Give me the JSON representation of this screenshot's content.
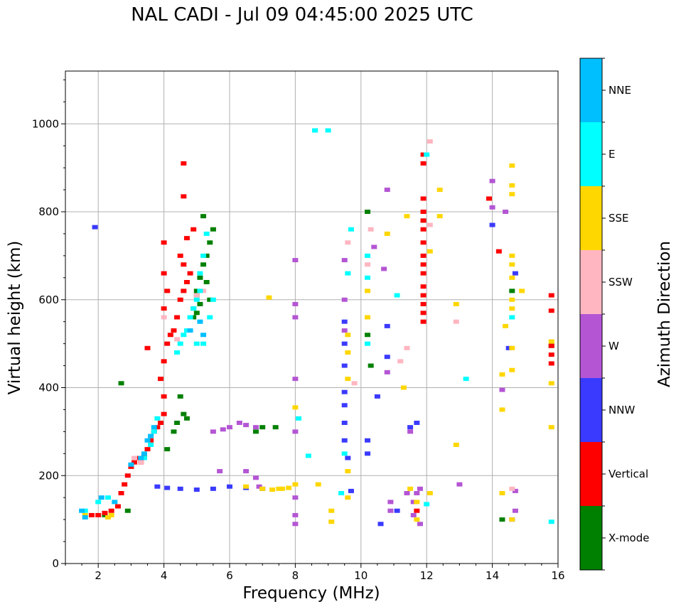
{
  "title": "NAL CADI - Jul 09 04:45:00 2025 UTC",
  "chart_data": {
    "type": "scatter",
    "title": "NAL CADI - Jul 09 04:45:00 2025 UTC",
    "xlabel": "Frequency (MHz)",
    "ylabel": "Virtual height (km)",
    "xlim": [
      1,
      16
    ],
    "ylim": [
      0,
      1120
    ],
    "xticks": [
      2,
      4,
      6,
      8,
      10,
      12,
      14,
      16
    ],
    "yticks": [
      0,
      200,
      400,
      600,
      800,
      1000
    ],
    "grid": true,
    "colorbar": {
      "label": "Azimuth Direction",
      "categories": [
        "X-mode",
        "Vertical",
        "NNW",
        "W",
        "SSW",
        "SSE",
        "E",
        "NNE"
      ],
      "colors": [
        "#008000",
        "#ff0000",
        "#3a3aff",
        "#b455d4",
        "#ffb6c1",
        "#ffd700",
        "#00ffff",
        "#00bfff"
      ]
    },
    "series": [
      {
        "name": "X-mode",
        "points": [
          [
            2.2,
            110
          ],
          [
            2.9,
            120
          ],
          [
            2.7,
            410
          ],
          [
            4.1,
            260
          ],
          [
            4.3,
            300
          ],
          [
            4.4,
            320
          ],
          [
            4.5,
            380
          ],
          [
            4.6,
            340
          ],
          [
            4.7,
            330
          ],
          [
            4.9,
            560
          ],
          [
            5.0,
            570
          ],
          [
            5.1,
            590
          ],
          [
            5.0,
            620
          ],
          [
            5.1,
            650
          ],
          [
            5.2,
            680
          ],
          [
            5.3,
            700
          ],
          [
            5.4,
            730
          ],
          [
            5.5,
            760
          ],
          [
            5.2,
            790
          ],
          [
            5.0,
            610
          ],
          [
            4.9,
            580
          ],
          [
            5.3,
            640
          ],
          [
            5.4,
            600
          ],
          [
            6.8,
            300
          ],
          [
            7.0,
            310
          ],
          [
            7.4,
            310
          ],
          [
            10.2,
            800
          ],
          [
            10.3,
            450
          ],
          [
            10.2,
            520
          ],
          [
            11.9,
            800
          ],
          [
            11.9,
            780
          ],
          [
            14.3,
            100
          ],
          [
            14.6,
            620
          ],
          [
            15.8,
            495
          ]
        ]
      },
      {
        "name": "Vertical",
        "points": [
          [
            1.8,
            110
          ],
          [
            2.0,
            110
          ],
          [
            2.2,
            115
          ],
          [
            2.4,
            120
          ],
          [
            2.6,
            130
          ],
          [
            2.7,
            160
          ],
          [
            2.8,
            180
          ],
          [
            2.9,
            200
          ],
          [
            3.0,
            220
          ],
          [
            3.1,
            230
          ],
          [
            3.2,
            240
          ],
          [
            3.3,
            230
          ],
          [
            3.4,
            245
          ],
          [
            3.5,
            260
          ],
          [
            3.6,
            280
          ],
          [
            3.7,
            300
          ],
          [
            3.8,
            310
          ],
          [
            3.9,
            320
          ],
          [
            4.0,
            340
          ],
          [
            4.0,
            380
          ],
          [
            3.9,
            420
          ],
          [
            4.0,
            460
          ],
          [
            4.1,
            500
          ],
          [
            4.2,
            520
          ],
          [
            4.3,
            530
          ],
          [
            4.4,
            560
          ],
          [
            4.5,
            600
          ],
          [
            4.6,
            620
          ],
          [
            4.7,
            640
          ],
          [
            4.8,
            660
          ],
          [
            4.6,
            680
          ],
          [
            4.5,
            700
          ],
          [
            4.7,
            740
          ],
          [
            4.9,
            760
          ],
          [
            4.0,
            580
          ],
          [
            4.1,
            620
          ],
          [
            4.0,
            660
          ],
          [
            4.0,
            730
          ],
          [
            4.6,
            910
          ],
          [
            4.6,
            835
          ],
          [
            3.5,
            490
          ],
          [
            11.9,
            930
          ],
          [
            11.9,
            910
          ],
          [
            11.9,
            830
          ],
          [
            11.9,
            800
          ],
          [
            11.9,
            780
          ],
          [
            11.9,
            760
          ],
          [
            11.9,
            730
          ],
          [
            11.9,
            700
          ],
          [
            11.9,
            680
          ],
          [
            11.9,
            660
          ],
          [
            11.9,
            630
          ],
          [
            11.9,
            610
          ],
          [
            11.9,
            590
          ],
          [
            11.9,
            570
          ],
          [
            11.9,
            550
          ],
          [
            11.7,
            120
          ],
          [
            13.9,
            830
          ],
          [
            14.2,
            710
          ],
          [
            15.8,
            610
          ],
          [
            15.8,
            575
          ],
          [
            15.8,
            495
          ],
          [
            15.8,
            475
          ],
          [
            15.8,
            455
          ]
        ]
      },
      {
        "name": "NNW",
        "points": [
          [
            1.9,
            765
          ],
          [
            3.8,
            175
          ],
          [
            4.1,
            172
          ],
          [
            4.5,
            170
          ],
          [
            5.0,
            168
          ],
          [
            5.5,
            170
          ],
          [
            6.0,
            175
          ],
          [
            6.5,
            172
          ],
          [
            7.0,
            170
          ],
          [
            9.5,
            550
          ],
          [
            9.5,
            500
          ],
          [
            9.5,
            450
          ],
          [
            9.5,
            390
          ],
          [
            9.5,
            360
          ],
          [
            9.5,
            320
          ],
          [
            9.5,
            280
          ],
          [
            9.6,
            240
          ],
          [
            9.7,
            165
          ],
          [
            10.2,
            250
          ],
          [
            10.2,
            280
          ],
          [
            10.5,
            380
          ],
          [
            10.8,
            540
          ],
          [
            10.8,
            470
          ],
          [
            10.6,
            90
          ],
          [
            11.1,
            120
          ],
          [
            11.5,
            310
          ],
          [
            11.7,
            320
          ],
          [
            14.0,
            770
          ],
          [
            14.5,
            490
          ],
          [
            14.7,
            660
          ],
          [
            14.6,
            100
          ]
        ]
      },
      {
        "name": "W",
        "points": [
          [
            5.5,
            300
          ],
          [
            5.8,
            305
          ],
          [
            6.0,
            310
          ],
          [
            6.3,
            320
          ],
          [
            6.5,
            315
          ],
          [
            6.8,
            310
          ],
          [
            5.7,
            210
          ],
          [
            6.5,
            210
          ],
          [
            6.8,
            195
          ],
          [
            6.9,
            175
          ],
          [
            8.0,
            110
          ],
          [
            8.0,
            90
          ],
          [
            8.0,
            150
          ],
          [
            8.0,
            300
          ],
          [
            8.0,
            420
          ],
          [
            8.0,
            590
          ],
          [
            8.0,
            560
          ],
          [
            8.0,
            690
          ],
          [
            9.5,
            690
          ],
          [
            9.5,
            600
          ],
          [
            9.5,
            530
          ],
          [
            10.4,
            720
          ],
          [
            10.7,
            670
          ],
          [
            10.8,
            850
          ],
          [
            10.8,
            435
          ],
          [
            10.9,
            120
          ],
          [
            10.9,
            140
          ],
          [
            11.4,
            160
          ],
          [
            11.5,
            300
          ],
          [
            11.6,
            110
          ],
          [
            11.6,
            140
          ],
          [
            11.7,
            160
          ],
          [
            11.8,
            170
          ],
          [
            11.8,
            90
          ],
          [
            13.0,
            180
          ],
          [
            14.0,
            870
          ],
          [
            14.0,
            810
          ],
          [
            14.4,
            800
          ],
          [
            14.3,
            395
          ],
          [
            14.7,
            165
          ],
          [
            14.7,
            120
          ]
        ]
      },
      {
        "name": "SSW",
        "points": [
          [
            3.1,
            240
          ],
          [
            3.3,
            230
          ],
          [
            4.0,
            560
          ],
          [
            4.4,
            510
          ],
          [
            5.0,
            610
          ],
          [
            5.2,
            620
          ],
          [
            9.6,
            730
          ],
          [
            10.2,
            680
          ],
          [
            10.3,
            760
          ],
          [
            11.2,
            460
          ],
          [
            11.4,
            490
          ],
          [
            12.1,
            960
          ],
          [
            12.1,
            770
          ],
          [
            12.9,
            550
          ],
          [
            14.6,
            170
          ],
          [
            9.8,
            410
          ]
        ]
      },
      {
        "name": "SSE",
        "points": [
          [
            1.6,
            110
          ],
          [
            2.4,
            110
          ],
          [
            2.3,
            105
          ],
          [
            6.5,
            175
          ],
          [
            7.0,
            170
          ],
          [
            7.3,
            168
          ],
          [
            7.5,
            170
          ],
          [
            7.6,
            170
          ],
          [
            7.8,
            172
          ],
          [
            8.0,
            180
          ],
          [
            8.7,
            180
          ],
          [
            9.1,
            95
          ],
          [
            9.1,
            120
          ],
          [
            9.6,
            210
          ],
          [
            9.6,
            520
          ],
          [
            9.6,
            480
          ],
          [
            9.6,
            420
          ],
          [
            9.6,
            150
          ],
          [
            10.2,
            560
          ],
          [
            10.2,
            620
          ],
          [
            10.8,
            750
          ],
          [
            11.4,
            790
          ],
          [
            11.3,
            400
          ],
          [
            11.5,
            170
          ],
          [
            11.7,
            140
          ],
          [
            11.7,
            100
          ],
          [
            12.1,
            160
          ],
          [
            12.1,
            710
          ],
          [
            12.4,
            790
          ],
          [
            12.4,
            850
          ],
          [
            12.9,
            590
          ],
          [
            12.9,
            270
          ],
          [
            14.3,
            430
          ],
          [
            14.3,
            350
          ],
          [
            14.3,
            160
          ],
          [
            14.4,
            540
          ],
          [
            14.6,
            905
          ],
          [
            14.6,
            860
          ],
          [
            14.6,
            840
          ],
          [
            14.6,
            700
          ],
          [
            14.6,
            680
          ],
          [
            14.6,
            650
          ],
          [
            14.6,
            600
          ],
          [
            14.6,
            580
          ],
          [
            14.6,
            490
          ],
          [
            14.6,
            440
          ],
          [
            14.6,
            100
          ],
          [
            14.9,
            620
          ],
          [
            15.8,
            505
          ],
          [
            15.8,
            410
          ],
          [
            15.8,
            310
          ],
          [
            7.2,
            605
          ],
          [
            8.0,
            355
          ]
        ]
      },
      {
        "name": "E",
        "points": [
          [
            3.4,
            240
          ],
          [
            3.6,
            270
          ],
          [
            3.7,
            300
          ],
          [
            3.8,
            330
          ],
          [
            4.4,
            480
          ],
          [
            4.5,
            500
          ],
          [
            4.6,
            520
          ],
          [
            4.7,
            530
          ],
          [
            4.8,
            560
          ],
          [
            4.9,
            580
          ],
          [
            5.0,
            600
          ],
          [
            5.1,
            620
          ],
          [
            5.1,
            660
          ],
          [
            5.2,
            700
          ],
          [
            5.3,
            750
          ],
          [
            5.2,
            500
          ],
          [
            5.4,
            560
          ],
          [
            5.5,
            600
          ],
          [
            5.0,
            500
          ],
          [
            8.1,
            330
          ],
          [
            8.4,
            245
          ],
          [
            8.6,
            985
          ],
          [
            8.6,
            985
          ],
          [
            9.0,
            985
          ],
          [
            9.6,
            660
          ],
          [
            9.7,
            760
          ],
          [
            9.5,
            250
          ],
          [
            10.2,
            650
          ],
          [
            10.2,
            700
          ],
          [
            10.2,
            500
          ],
          [
            11.1,
            610
          ],
          [
            12.0,
            930
          ],
          [
            12.0,
            135
          ],
          [
            13.2,
            420
          ],
          [
            14.6,
            560
          ],
          [
            15.8,
            95
          ],
          [
            1.6,
            120
          ],
          [
            2.0,
            140
          ],
          [
            2.3,
            150
          ],
          [
            9.4,
            160
          ]
        ]
      },
      {
        "name": "NNE",
        "points": [
          [
            1.5,
            120
          ],
          [
            1.6,
            105
          ],
          [
            2.1,
            150
          ],
          [
            2.5,
            140
          ],
          [
            3.0,
            225
          ],
          [
            3.3,
            240
          ],
          [
            3.4,
            250
          ],
          [
            3.5,
            280
          ],
          [
            3.6,
            290
          ],
          [
            3.7,
            310
          ],
          [
            4.8,
            530
          ],
          [
            5.1,
            550
          ],
          [
            5.2,
            520
          ]
        ]
      }
    ]
  }
}
